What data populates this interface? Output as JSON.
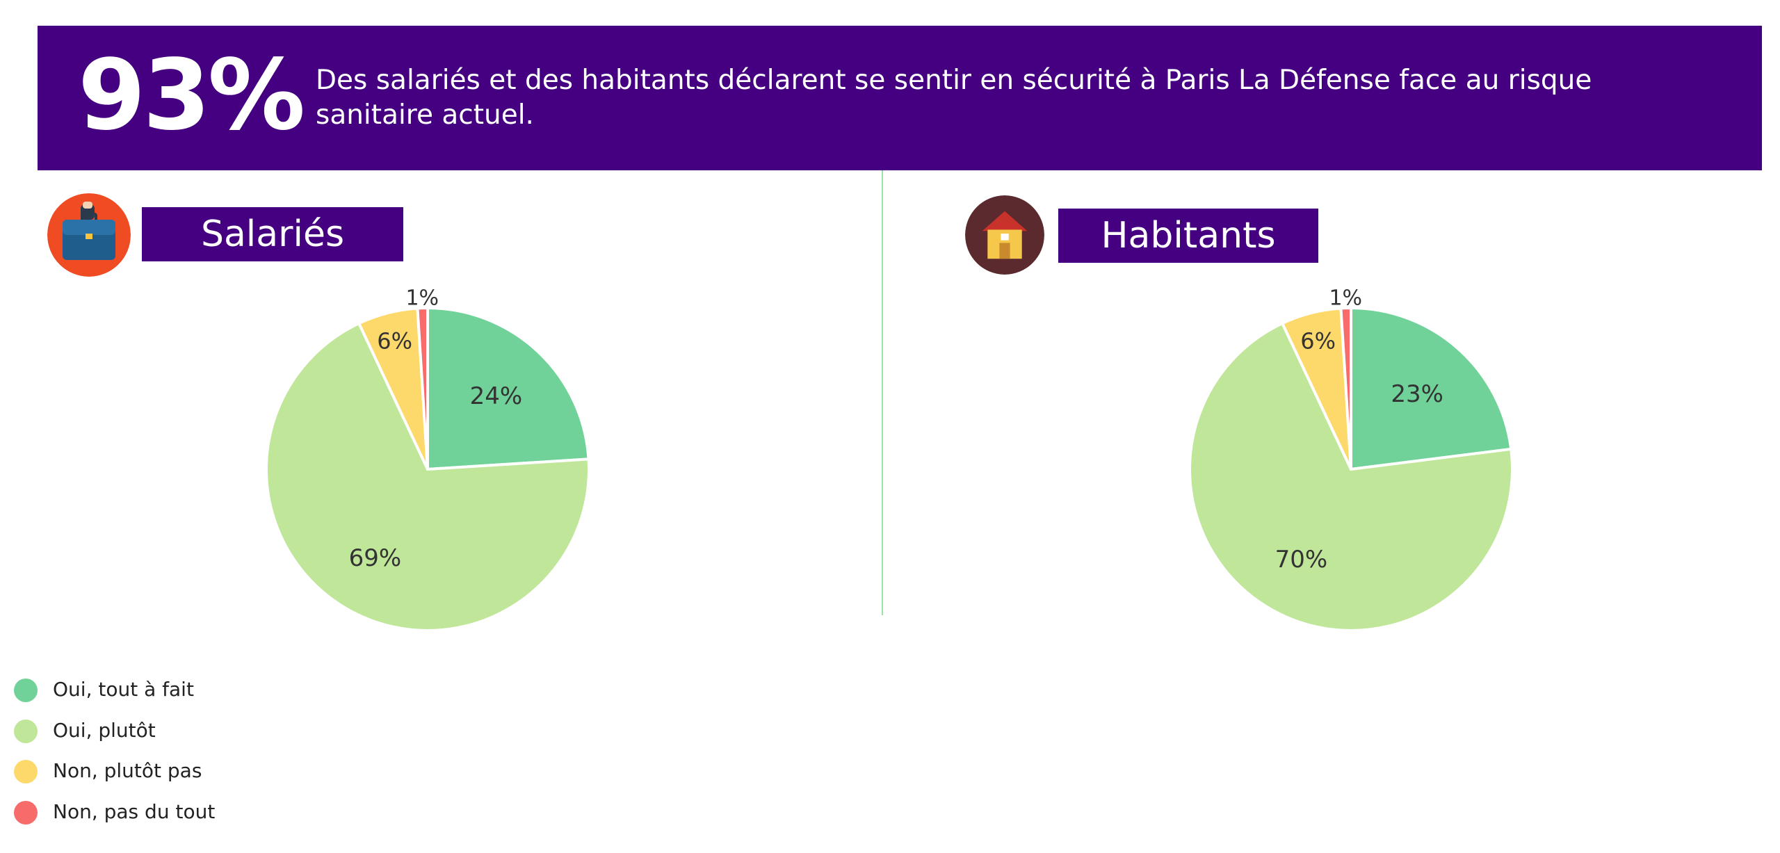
{
  "banner": {
    "headline": "93%",
    "line1": "Des salariés et des habitants déclarent se sentir en sécurité à Paris La Défense face au risque",
    "line2": "sanitaire actuel."
  },
  "colors": {
    "banner_bg": "#440080",
    "divider": "#9fe3a3"
  },
  "groups": [
    {
      "label": "Salariés",
      "icon": "briefcase-icon"
    },
    {
      "label": "Habitants",
      "icon": "house-icon"
    }
  ],
  "chart_data": [
    {
      "type": "pie",
      "title": "Salariés",
      "labels": [
        "Oui, tout à fait",
        "Oui, plutôt",
        "Non, plutôt pas",
        "Non, pas du tout"
      ],
      "values": [
        24,
        69,
        6,
        1
      ],
      "value_labels": [
        "24%",
        "69%",
        "6%",
        "1%"
      ],
      "colors": [
        "#71d299",
        "#c0e69a",
        "#fdd96c",
        "#f86b6b"
      ]
    },
    {
      "type": "pie",
      "title": "Habitants",
      "labels": [
        "Oui, tout à fait",
        "Oui, plutôt",
        "Non, plutôt pas",
        "Non, pas du tout"
      ],
      "values": [
        23,
        70,
        6,
        1
      ],
      "value_labels": [
        "23%",
        "70%",
        "6%",
        "1%"
      ],
      "colors": [
        "#71d299",
        "#c0e69a",
        "#fdd96c",
        "#f86b6b"
      ]
    }
  ],
  "legend": {
    "position": "bottom-left",
    "items": [
      {
        "label": "Oui, tout à fait",
        "color": "#71d299"
      },
      {
        "label": "Oui, plutôt",
        "color": "#c0e69a"
      },
      {
        "label": "Non, plutôt pas",
        "color": "#fdd96c"
      },
      {
        "label": "Non, pas du tout",
        "color": "#f86b6b"
      }
    ]
  }
}
